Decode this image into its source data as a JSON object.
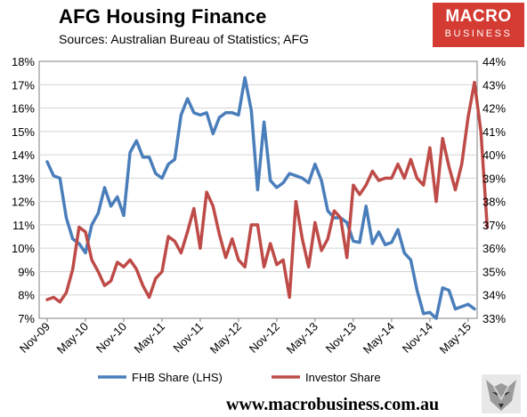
{
  "header": {
    "title": "AFG Housing Finance",
    "subtitle": "Sources: Australian Bureau of Statistics; AFG"
  },
  "logo": {
    "line1": "MACRO",
    "line2": "BUSINESS"
  },
  "footer": {
    "url": "www.macrobusiness.com.au"
  },
  "chart_data": {
    "type": "line",
    "title": "AFG Housing Finance",
    "subtitle": "Sources: Australian Bureau of Statistics; AFG",
    "x_tick_labels": [
      "Nov-09",
      "May-10",
      "Nov-10",
      "May-11",
      "Nov-11",
      "May-12",
      "Nov-12",
      "May-13",
      "Nov-13",
      "May-14",
      "Nov-14",
      "May-15"
    ],
    "y_left": {
      "ticks": [
        "7%",
        "8%",
        "9%",
        "10%",
        "11%",
        "12%",
        "13%",
        "14%",
        "15%",
        "16%",
        "17%",
        "18%"
      ],
      "min": 7,
      "max": 18
    },
    "y_right": {
      "ticks": [
        "33%",
        "34%",
        "35%",
        "36%",
        "37%",
        "38%",
        "39%",
        "40%",
        "41%",
        "42%",
        "43%",
        "44%"
      ],
      "min": 33,
      "max": 44
    },
    "grid": "horizontal",
    "legend_position": "bottom",
    "months_start": "Nov-09",
    "series": [
      {
        "name": "FHB Share (LHS)",
        "axis": "left",
        "color": "#4a7ebb",
        "values": [
          13.7,
          13.1,
          13.0,
          11.3,
          10.4,
          10.2,
          9.8,
          11.0,
          11.5,
          12.6,
          11.8,
          12.2,
          11.4,
          14.1,
          14.6,
          13.9,
          13.9,
          13.2,
          13.0,
          13.6,
          13.8,
          15.7,
          16.4,
          15.8,
          15.7,
          15.8,
          14.9,
          15.6,
          15.8,
          15.8,
          15.7,
          17.3,
          15.9,
          12.5,
          15.4,
          12.9,
          12.6,
          12.8,
          13.2,
          13.1,
          13.0,
          12.8,
          13.6,
          12.9,
          11.6,
          11.3,
          11.3,
          11.1,
          10.3,
          10.25,
          11.8,
          10.2,
          10.7,
          10.15,
          10.25,
          10.8,
          9.8,
          9.5,
          8.2,
          7.2,
          7.25,
          7.0,
          8.3,
          8.2,
          7.4,
          7.5,
          7.6,
          7.4
        ]
      },
      {
        "name": "Investor Share",
        "axis": "right",
        "color": "#be4b48",
        "values": [
          33.8,
          33.9,
          33.7,
          34.1,
          35.1,
          36.9,
          36.7,
          35.5,
          35.0,
          34.4,
          34.6,
          35.4,
          35.2,
          35.5,
          35.1,
          34.4,
          33.9,
          34.7,
          35.0,
          36.5,
          36.3,
          35.8,
          36.7,
          37.7,
          36.0,
          38.4,
          37.8,
          36.6,
          35.6,
          36.4,
          35.5,
          35.2,
          37.0,
          37.0,
          35.2,
          36.2,
          35.3,
          35.5,
          33.9,
          38.0,
          36.4,
          35.2,
          37.1,
          35.9,
          36.4,
          37.6,
          37.3,
          35.6,
          38.7,
          38.3,
          38.7,
          39.3,
          38.9,
          39.0,
          39.0,
          39.6,
          39.0,
          39.8,
          39.0,
          38.7,
          40.3,
          38.0,
          40.7,
          39.5,
          38.5,
          39.6,
          41.6,
          43.1,
          41.0,
          36.9
        ]
      }
    ]
  }
}
